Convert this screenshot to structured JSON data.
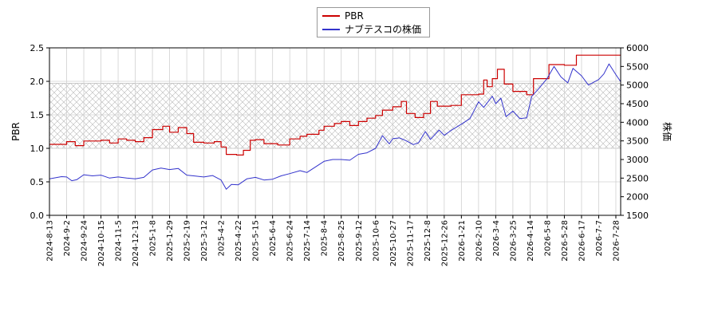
{
  "chart_data": {
    "type": "line",
    "grid": true,
    "legend_placement": "top-center",
    "band": {
      "y_min": 1.0,
      "y_max": 1.97,
      "hatch": "cross"
    },
    "x_ticks": [
      "2024-8-13",
      "2024-9-2",
      "2024-9-24",
      "2024-10-15",
      "2024-11-5",
      "2024-12-13",
      "2025-1-8",
      "2025-1-29",
      "2025-2-19",
      "2025-3-12",
      "2025-4-2",
      "2025-4-22",
      "2025-5-15",
      "2025-6-4",
      "2025-6-24",
      "2025-7-14",
      "2025-8-4",
      "2025-8-25",
      "2025-9-12",
      "2025-10-6",
      "2025-10-27",
      "2025-11-17",
      "2025-12-8",
      "2025-12-26",
      "2026-1-21",
      "2026-2-10",
      "2026-3-4",
      "2026-3-25",
      "2026-4-14",
      "2026-5-8",
      "2026-5-28",
      "2026-6-17",
      "2026-7-7",
      "2026-7-28"
    ],
    "y_left": {
      "label": "PBR",
      "min": 0.0,
      "max": 2.5,
      "ticks": [
        "0.0",
        "0.5",
        "1.0",
        "1.5",
        "2.0",
        "2.5"
      ]
    },
    "y_right": {
      "label": "株価",
      "min": 1500,
      "max": 6000,
      "ticks": [
        "1500",
        "2000",
        "2500",
        "3000",
        "3500",
        "4000",
        "4500",
        "5000",
        "5500",
        "6000"
      ]
    },
    "series": [
      {
        "name": "PBR",
        "axis": "left",
        "color": "#cc0000",
        "step": true,
        "points": [
          [
            0,
            1.06
          ],
          [
            1,
            1.1
          ],
          [
            1.5,
            1.04
          ],
          [
            2,
            1.11
          ],
          [
            3,
            1.12
          ],
          [
            3.5,
            1.08
          ],
          [
            4,
            1.14
          ],
          [
            4.5,
            1.12
          ],
          [
            5,
            1.1
          ],
          [
            5.5,
            1.16
          ],
          [
            6,
            1.28
          ],
          [
            6.6,
            1.33
          ],
          [
            7,
            1.24
          ],
          [
            7.5,
            1.31
          ],
          [
            8,
            1.22
          ],
          [
            8.4,
            1.09
          ],
          [
            9,
            1.08
          ],
          [
            9.6,
            1.1
          ],
          [
            10,
            1.02
          ],
          [
            10.3,
            0.91
          ],
          [
            10.9,
            0.9
          ],
          [
            11.3,
            0.97
          ],
          [
            11.7,
            1.12
          ],
          [
            12,
            1.13
          ],
          [
            12.5,
            1.07
          ],
          [
            13.3,
            1.05
          ],
          [
            14,
            1.14
          ],
          [
            14.6,
            1.18
          ],
          [
            15,
            1.21
          ],
          [
            15.7,
            1.27
          ],
          [
            16,
            1.33
          ],
          [
            16.6,
            1.37
          ],
          [
            17,
            1.4
          ],
          [
            17.5,
            1.34
          ],
          [
            18,
            1.4
          ],
          [
            18.5,
            1.45
          ],
          [
            19,
            1.49
          ],
          [
            19.4,
            1.57
          ],
          [
            20,
            1.62
          ],
          [
            20.5,
            1.7
          ],
          [
            20.8,
            1.52
          ],
          [
            21.3,
            1.46
          ],
          [
            21.8,
            1.52
          ],
          [
            22.2,
            1.7
          ],
          [
            22.6,
            1.63
          ],
          [
            23.4,
            1.64
          ],
          [
            24,
            1.8
          ],
          [
            25,
            1.81
          ],
          [
            25.3,
            2.02
          ],
          [
            25.5,
            1.92
          ],
          [
            25.8,
            2.04
          ],
          [
            26.1,
            2.18
          ],
          [
            26.5,
            1.96
          ],
          [
            27,
            1.85
          ],
          [
            27.8,
            1.8
          ],
          [
            28.2,
            2.04
          ],
          [
            28.9,
            2.04
          ],
          [
            29.1,
            2.25
          ],
          [
            30,
            2.24
          ],
          [
            30.7,
            2.39
          ],
          [
            32.6,
            2.39
          ],
          [
            33.5,
            2.39
          ],
          [
            34.3,
            1.99
          ],
          [
            34.7,
            1.9
          ]
        ]
      },
      {
        "name": "ナブテスコの株価",
        "axis": "right",
        "color": "#3333cc",
        "step": false,
        "points": [
          [
            0,
            2480
          ],
          [
            0.7,
            2540
          ],
          [
            1,
            2530
          ],
          [
            1.3,
            2430
          ],
          [
            1.6,
            2460
          ],
          [
            2,
            2590
          ],
          [
            2.5,
            2560
          ],
          [
            3,
            2580
          ],
          [
            3.5,
            2500
          ],
          [
            4,
            2530
          ],
          [
            4.5,
            2500
          ],
          [
            5,
            2480
          ],
          [
            5.5,
            2520
          ],
          [
            6,
            2720
          ],
          [
            6.5,
            2770
          ],
          [
            7,
            2730
          ],
          [
            7.5,
            2760
          ],
          [
            8,
            2580
          ],
          [
            8.4,
            2560
          ],
          [
            9,
            2530
          ],
          [
            9.5,
            2570
          ],
          [
            10,
            2450
          ],
          [
            10.3,
            2200
          ],
          [
            10.6,
            2330
          ],
          [
            11,
            2320
          ],
          [
            11.5,
            2480
          ],
          [
            12,
            2520
          ],
          [
            12.5,
            2450
          ],
          [
            13,
            2470
          ],
          [
            13.5,
            2560
          ],
          [
            14,
            2620
          ],
          [
            14.6,
            2700
          ],
          [
            15,
            2650
          ],
          [
            15.5,
            2800
          ],
          [
            16,
            2950
          ],
          [
            16.5,
            3000
          ],
          [
            17,
            3000
          ],
          [
            17.5,
            2980
          ],
          [
            18,
            3140
          ],
          [
            18.5,
            3180
          ],
          [
            19,
            3300
          ],
          [
            19.4,
            3640
          ],
          [
            19.8,
            3420
          ],
          [
            20,
            3560
          ],
          [
            20.4,
            3580
          ],
          [
            20.8,
            3500
          ],
          [
            21.2,
            3400
          ],
          [
            21.5,
            3450
          ],
          [
            21.9,
            3750
          ],
          [
            22.2,
            3540
          ],
          [
            22.7,
            3790
          ],
          [
            23,
            3650
          ],
          [
            23.4,
            3780
          ],
          [
            24,
            3950
          ],
          [
            24.5,
            4100
          ],
          [
            25,
            4550
          ],
          [
            25.3,
            4400
          ],
          [
            25.8,
            4700
          ],
          [
            26,
            4500
          ],
          [
            26.3,
            4650
          ],
          [
            26.6,
            4150
          ],
          [
            27,
            4300
          ],
          [
            27.4,
            4100
          ],
          [
            27.8,
            4120
          ],
          [
            28.1,
            4700
          ],
          [
            28.5,
            4900
          ],
          [
            29,
            5180
          ],
          [
            29.4,
            5500
          ],
          [
            29.8,
            5220
          ],
          [
            30.2,
            5060
          ],
          [
            30.5,
            5450
          ],
          [
            31,
            5250
          ],
          [
            31.4,
            5000
          ],
          [
            32,
            5150
          ],
          [
            32.3,
            5300
          ],
          [
            32.6,
            5570
          ],
          [
            33,
            5280
          ],
          [
            33.4,
            5010
          ],
          [
            33.7,
            5040
          ],
          [
            34.1,
            4610
          ],
          [
            34.4,
            4900
          ],
          [
            34.7,
            5000
          ]
        ]
      }
    ]
  }
}
